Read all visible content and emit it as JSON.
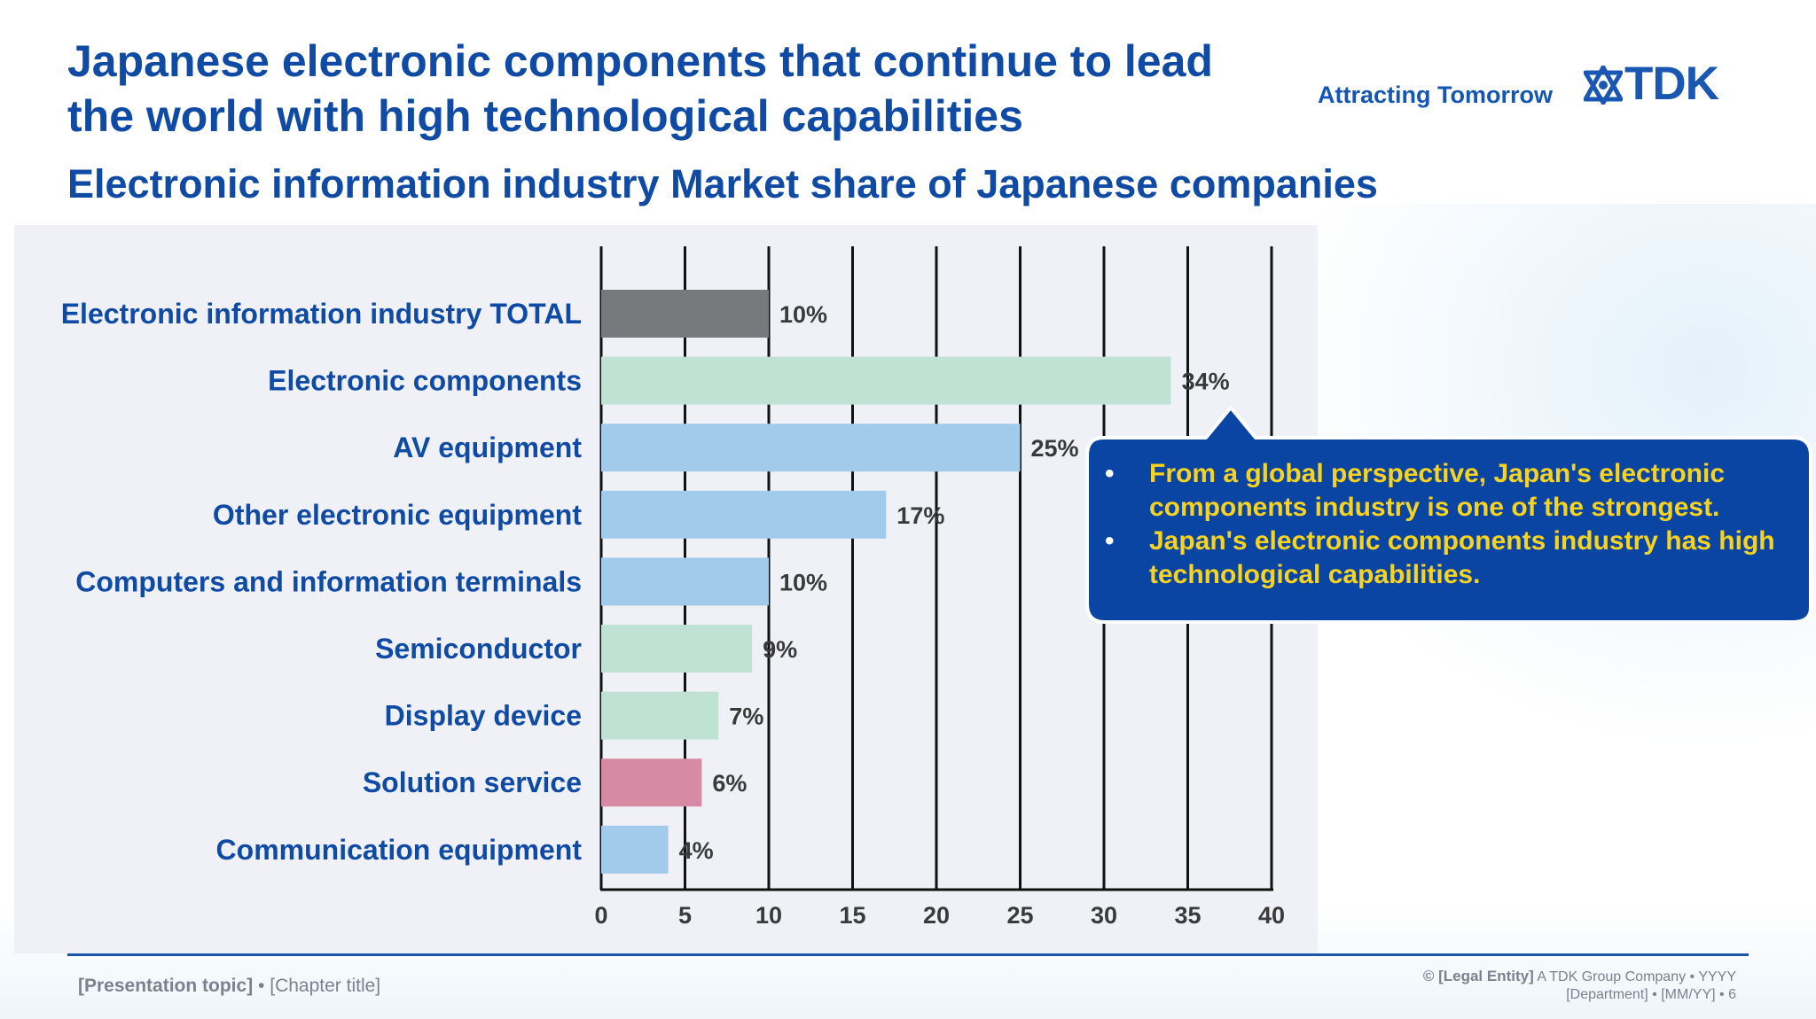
{
  "header": {
    "title_line1": "Japanese electronic components that continue to lead",
    "title_line2": "the world with high technological capabilities",
    "subtitle": "Electronic information industry Market share of Japanese companies",
    "tagline": "Attracting Tomorrow",
    "logo_text": "TDK"
  },
  "chart_data": {
    "type": "bar",
    "orientation": "horizontal",
    "categories": [
      "Electronic information industry TOTAL",
      "Electronic components",
      "AV equipment",
      "Other electronic equipment",
      "Computers and information terminals",
      "Semiconductor",
      "Display device",
      "Solution service",
      "Communication equipment"
    ],
    "values": [
      10,
      34,
      25,
      17,
      10,
      9,
      7,
      6,
      4
    ],
    "value_labels": [
      "10%",
      "34%",
      "25%",
      "17%",
      "10%",
      "9%",
      "7%",
      "6%",
      "4%"
    ],
    "bar_colors": [
      "#78797d",
      "#bfe2d4",
      "#a2cbeb",
      "#a2cbeb",
      "#a2cbeb",
      "#bfe2d4",
      "#bfe2d4",
      "#d68aa4",
      "#a2cbeb"
    ],
    "xlim": [
      0,
      40
    ],
    "xticks": [
      0,
      5,
      10,
      15,
      20,
      25,
      30,
      35,
      40
    ],
    "grid": true
  },
  "callout": {
    "bullets": [
      "From a global perspective, Japan's electronic components industry is one of the strongest.",
      "Japan's electronic components industry has high technological capabilities."
    ]
  },
  "footer": {
    "topic": "[Presentation topic]",
    "separator": "•",
    "chapter": "[Chapter title]",
    "legal_entity": "© [Legal Entity]",
    "company": "A TDK Group Company",
    "year": "YYYY",
    "department": "[Department]",
    "date": "[MM/YY]",
    "page": "6"
  },
  "colors": {
    "title_blue": "#0f4aa4",
    "callout_fill": "#0b45a3",
    "callout_text": "#f6d321"
  }
}
